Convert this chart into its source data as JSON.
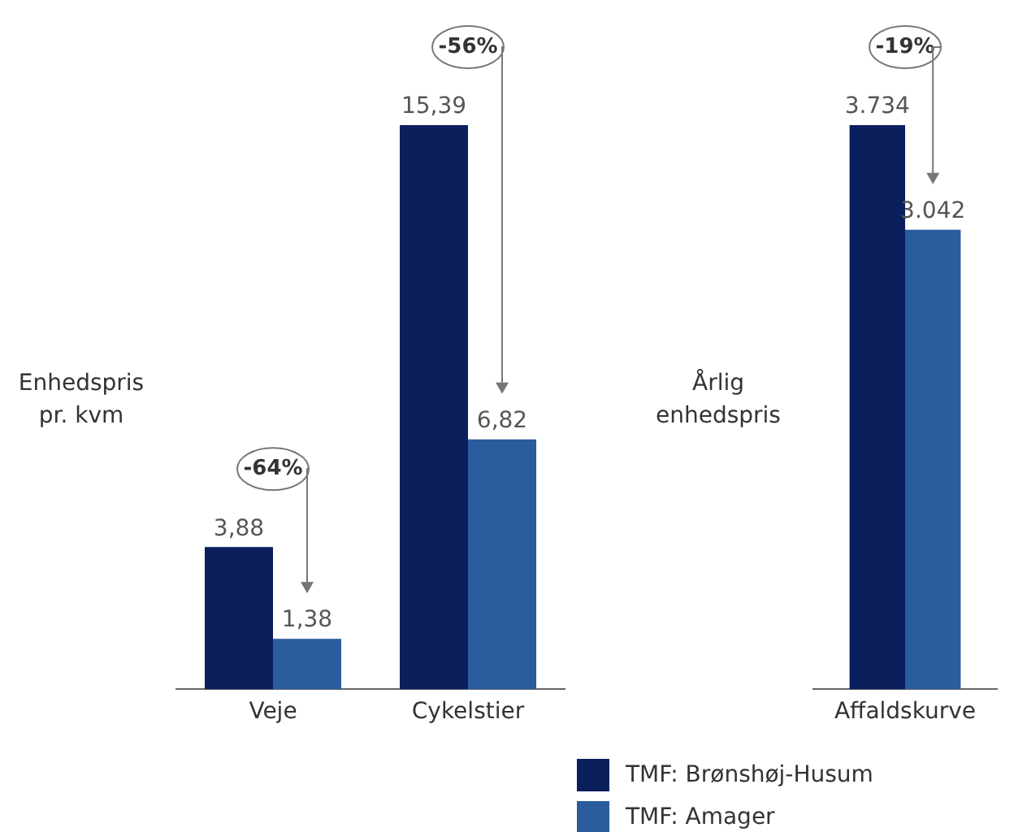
{
  "chart_data": [
    {
      "type": "bar",
      "ylabel": "Enhedspris pr. kvm",
      "categories": [
        "Veje",
        "Cykelstier"
      ],
      "series": [
        {
          "color": "#0b1f5c",
          "values": [
            3.88,
            15.39
          ],
          "value_labels": [
            "3,88",
            "15,39"
          ]
        },
        {
          "color": "#2a5c9e",
          "values": [
            1.38,
            6.82
          ],
          "value_labels": [
            "1,38",
            "6,82"
          ]
        }
      ],
      "annotations": [
        "-64%",
        "-56%"
      ],
      "tick_labels": "x",
      "grid": false,
      "legend": false
    },
    {
      "type": "bar",
      "ylabel": "Årlig enhedspris",
      "categories": [
        "Affaldskurve"
      ],
      "series": [
        {
          "name": "TMF: Brønshøj-Husum",
          "color": "#0b1f5c",
          "values": [
            3734
          ],
          "value_labels": [
            "3.734"
          ]
        },
        {
          "name": "TMF: Amager",
          "color": "#2a5c9e",
          "values": [
            3042
          ],
          "value_labels": [
            "3.042"
          ]
        }
      ],
      "annotations": [
        "-19%"
      ],
      "tick_labels": "x",
      "grid": false,
      "legend": "bottom"
    }
  ]
}
